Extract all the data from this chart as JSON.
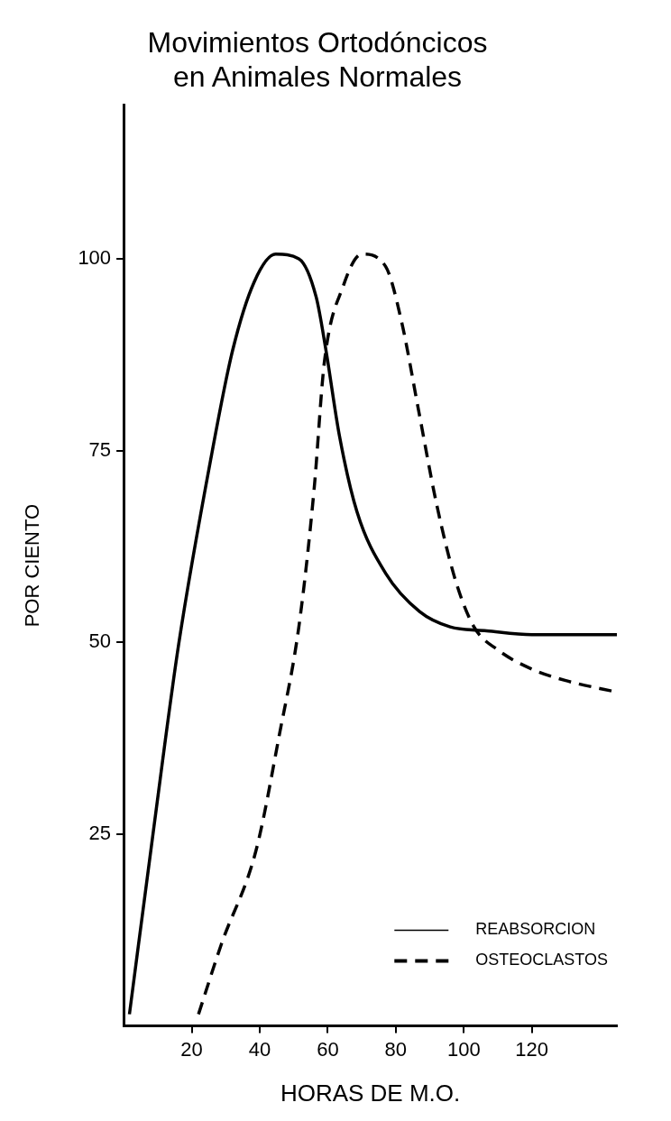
{
  "chart_data": {
    "type": "line",
    "title": [
      "Movimientos Ortodóncicos",
      "en Animales Normales"
    ],
    "xlabel": "HORAS DE M.O.",
    "ylabel": "POR CIENTO",
    "xlim": [
      0,
      145
    ],
    "xticks": [
      20,
      40,
      60,
      80,
      100,
      120
    ],
    "ylim": [
      0,
      120
    ],
    "yticks": [
      25,
      50,
      75,
      100
    ],
    "grid": false,
    "legend": "bottom right",
    "marker": "none",
    "series": [
      {
        "name": "REABSORCION",
        "color": "#000000",
        "line_style": "solid",
        "x": [
          1.7,
          8.8,
          16.2,
          26,
          32,
          38.4,
          44.7,
          51.5,
          56.6,
          59.5,
          63.4,
          68.6,
          77,
          87,
          96,
          106.7,
          120,
          145
        ],
        "values": [
          1.5,
          25.6,
          49.8,
          74.8,
          88,
          97,
          100.6,
          100,
          95,
          88,
          77,
          67,
          59,
          54,
          52,
          51.5,
          51,
          51
        ]
      },
      {
        "name": "OSTEOCLASTOS",
        "color": "#000000",
        "line_style": "dashed",
        "x": [
          22,
          28.7,
          39,
          45.8,
          51.5,
          56,
          59,
          64.6,
          70,
          77,
          81.6,
          86.8,
          92,
          97.6,
          103,
          110,
          120,
          130,
          145
        ],
        "values": [
          1.5,
          10.6,
          23,
          38,
          52,
          70,
          86.5,
          96.5,
          100.6,
          99,
          92,
          80,
          68,
          58,
          52,
          49,
          46.5,
          45,
          43.5
        ]
      }
    ]
  }
}
